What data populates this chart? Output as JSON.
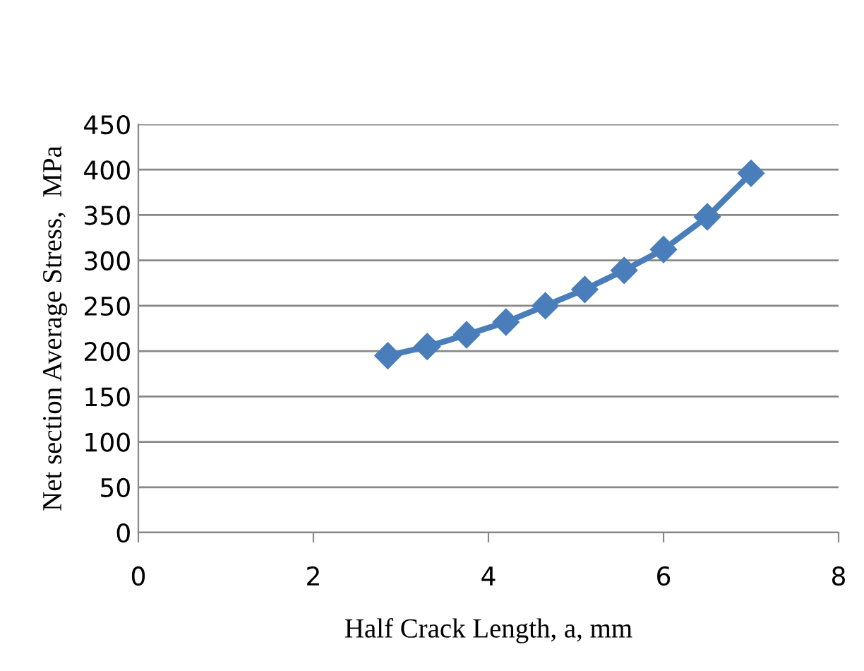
{
  "chart_data": {
    "type": "line",
    "xlabel": "Half Crack Length, a, mm",
    "ylabel": "Net section Average Stress,  MPa",
    "series": [
      {
        "color": "#4a7ebb",
        "x": [
          2.85,
          3.3,
          3.75,
          4.2,
          4.65,
          5.1,
          5.55,
          6.0,
          6.5,
          7.0
        ],
        "values": [
          195,
          205,
          218,
          232,
          250,
          268,
          289,
          312,
          348,
          396
        ]
      }
    ],
    "xlim": [
      0,
      8
    ],
    "xticks": [
      0,
      2,
      4,
      6,
      8
    ],
    "ylim": [
      0,
      450
    ],
    "yticks": [
      0,
      50,
      100,
      150,
      200,
      250,
      300,
      350,
      400,
      450
    ],
    "grid": "y",
    "marker": "diamond",
    "line_style": "solid"
  }
}
